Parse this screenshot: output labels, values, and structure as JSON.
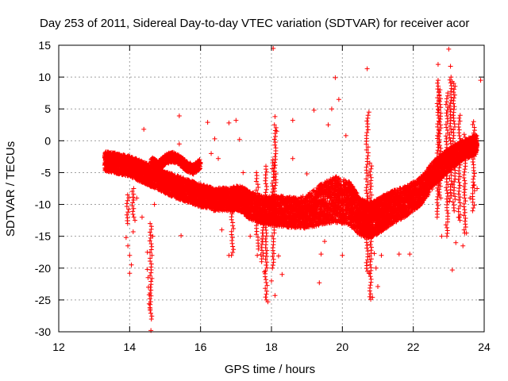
{
  "chart_data": {
    "type": "scatter",
    "title": "Day 253 of 2011, Sidereal Day-to-day VTEC variation (SDTVAR) for receiver acor",
    "xlabel": "GPS time / hours",
    "ylabel": "SDTVAR / TECUs",
    "xlim": [
      12,
      24
    ],
    "ylim": [
      -30,
      15
    ],
    "xticks": [
      12,
      14,
      16,
      18,
      20,
      22,
      24
    ],
    "yticks": [
      -30,
      -25,
      -20,
      -15,
      -10,
      -5,
      0,
      5,
      10,
      15
    ],
    "grid": true,
    "marker": "+",
    "color": "#ff0000",
    "series": [
      {
        "name": "SDTVAR",
        "band_center": [
          [
            13.3,
            -3.2
          ],
          [
            13.6,
            -3.5
          ],
          [
            14.0,
            -4.0
          ],
          [
            14.4,
            -5.0
          ],
          [
            14.8,
            -6.0
          ],
          [
            15.2,
            -7.0
          ],
          [
            15.6,
            -7.8
          ],
          [
            16.0,
            -8.6
          ],
          [
            16.4,
            -9.2
          ],
          [
            16.8,
            -9.2
          ],
          [
            17.1,
            -9.0
          ],
          [
            17.4,
            -10.2
          ],
          [
            17.8,
            -11.0
          ],
          [
            18.2,
            -11.0
          ],
          [
            18.6,
            -11.3
          ],
          [
            19.0,
            -11.2
          ],
          [
            19.4,
            -10.0
          ],
          [
            19.8,
            -9.2
          ],
          [
            20.2,
            -9.8
          ],
          [
            20.5,
            -12.0
          ],
          [
            20.8,
            -12.5
          ],
          [
            21.1,
            -11.5
          ],
          [
            21.4,
            -10.5
          ],
          [
            21.8,
            -9.5
          ],
          [
            22.2,
            -8.0
          ],
          [
            22.6,
            -5.0
          ],
          [
            23.0,
            -3.0
          ],
          [
            23.4,
            -1.5
          ],
          [
            23.8,
            -0.5
          ]
        ],
        "band_half_width": [
          1.5,
          1.6,
          1.6,
          1.7,
          1.7,
          1.8,
          1.8,
          1.8,
          1.8,
          1.8,
          2.0,
          2.2,
          2.2,
          2.4,
          2.4,
          2.6,
          3.2,
          3.6,
          3.4,
          3.0,
          2.8,
          2.8,
          2.6,
          2.4,
          2.2,
          2.0,
          1.8,
          1.6,
          1.5
        ],
        "scattered_points": [
          [
            13.9,
            -15.2
          ],
          [
            13.95,
            -16.5
          ],
          [
            14.0,
            -18.0
          ],
          [
            14.05,
            -19.5
          ],
          [
            14.0,
            -20.8
          ],
          [
            14.1,
            -14.3
          ],
          [
            14.15,
            -12.5
          ],
          [
            14.2,
            -9.0
          ],
          [
            14.35,
            -12.0
          ],
          [
            14.4,
            1.8
          ],
          [
            14.5,
            -17.5
          ],
          [
            14.5,
            -20.2
          ],
          [
            14.52,
            -21.5
          ],
          [
            14.53,
            -23.0
          ],
          [
            14.55,
            -24.2
          ],
          [
            14.55,
            -25.6
          ],
          [
            14.58,
            -26.4
          ],
          [
            14.6,
            -29.8
          ],
          [
            14.65,
            -15.0
          ],
          [
            14.7,
            -10.0
          ],
          [
            15.4,
            3.9
          ],
          [
            15.4,
            -0.5
          ],
          [
            15.45,
            -14.9
          ],
          [
            16.2,
            2.9
          ],
          [
            16.3,
            -2.0
          ],
          [
            16.4,
            0.3
          ],
          [
            16.5,
            -2.8
          ],
          [
            16.6,
            -14.0
          ],
          [
            16.8,
            2.8
          ],
          [
            16.8,
            -18.0
          ],
          [
            17.0,
            3.2
          ],
          [
            17.1,
            0.2
          ],
          [
            17.2,
            -5.0
          ],
          [
            17.4,
            -15.0
          ],
          [
            17.6,
            -18.0
          ],
          [
            17.7,
            -17.9
          ],
          [
            17.8,
            -20.6
          ],
          [
            17.9,
            -25.3
          ],
          [
            18.0,
            -22.0
          ],
          [
            18.05,
            14.5
          ],
          [
            18.1,
            3.8
          ],
          [
            18.1,
            -24.3
          ],
          [
            18.15,
            1.5
          ],
          [
            18.2,
            -18.1
          ],
          [
            18.3,
            -21.0
          ],
          [
            18.6,
            3.2
          ],
          [
            18.6,
            -2.8
          ],
          [
            19.0,
            -5.2
          ],
          [
            19.2,
            4.8
          ],
          [
            19.35,
            -22.3
          ],
          [
            19.4,
            -17.8
          ],
          [
            19.5,
            -15.8
          ],
          [
            19.6,
            2.5
          ],
          [
            19.7,
            5.0
          ],
          [
            19.8,
            9.9
          ],
          [
            19.9,
            6.5
          ],
          [
            20.0,
            -18.0
          ],
          [
            20.1,
            0.8
          ],
          [
            20.7,
            11.3
          ],
          [
            20.75,
            4.5
          ],
          [
            20.75,
            -20.8
          ],
          [
            20.8,
            -24.9
          ],
          [
            20.85,
            -24.6
          ],
          [
            20.9,
            -17.7
          ],
          [
            20.95,
            -20.0
          ],
          [
            21.0,
            -22.9
          ],
          [
            21.1,
            -18.0
          ],
          [
            21.6,
            -17.8
          ],
          [
            21.9,
            -17.8
          ],
          [
            22.7,
            12.0
          ],
          [
            22.8,
            -15.0
          ],
          [
            23.0,
            14.4
          ],
          [
            23.05,
            11.7
          ],
          [
            23.1,
            -20.3
          ],
          [
            23.1,
            9.3
          ],
          [
            23.2,
            -16.0
          ],
          [
            23.3,
            -12.0
          ],
          [
            23.4,
            -16.5
          ],
          [
            23.45,
            -14.5
          ],
          [
            23.5,
            -14.5
          ],
          [
            23.6,
            -9.0
          ],
          [
            23.7,
            -7.0
          ],
          [
            23.8,
            -7.5
          ],
          [
            23.9,
            9.5
          ]
        ],
        "spikes": [
          [
            13.95,
            -8.5,
            -13.0
          ],
          [
            14.1,
            -7.5,
            -12.0
          ],
          [
            14.6,
            -13.0,
            -28.0
          ],
          [
            16.9,
            -11.0,
            -18.0
          ],
          [
            17.6,
            -5.0,
            -17.0
          ],
          [
            17.75,
            -10.0,
            -19.0
          ],
          [
            17.85,
            -4.0,
            -25.0
          ],
          [
            18.05,
            -3.0,
            -20.0
          ],
          [
            18.1,
            2.5,
            -12.0
          ],
          [
            20.7,
            4.0,
            -20.5
          ],
          [
            20.8,
            -3.5,
            -24.5
          ],
          [
            22.7,
            9.5,
            -12.0
          ],
          [
            22.75,
            8.0,
            -9.0
          ],
          [
            22.95,
            7.5,
            -15.0
          ],
          [
            23.05,
            10.0,
            -9.5
          ],
          [
            23.15,
            9.0,
            -11.0
          ],
          [
            23.3,
            4.0,
            -12.5
          ],
          [
            23.45,
            1.0,
            -14.0
          ],
          [
            23.7,
            3.0,
            -11.0
          ]
        ],
        "blob": [
          [
            14.6,
            -3.3
          ],
          [
            14.8,
            -4.0
          ],
          [
            15.0,
            -3.0
          ],
          [
            15.2,
            -2.5
          ],
          [
            15.4,
            -3.0
          ],
          [
            15.6,
            -4.0
          ],
          [
            15.8,
            -4.5
          ],
          [
            16.0,
            -3.6
          ]
        ]
      }
    ]
  }
}
